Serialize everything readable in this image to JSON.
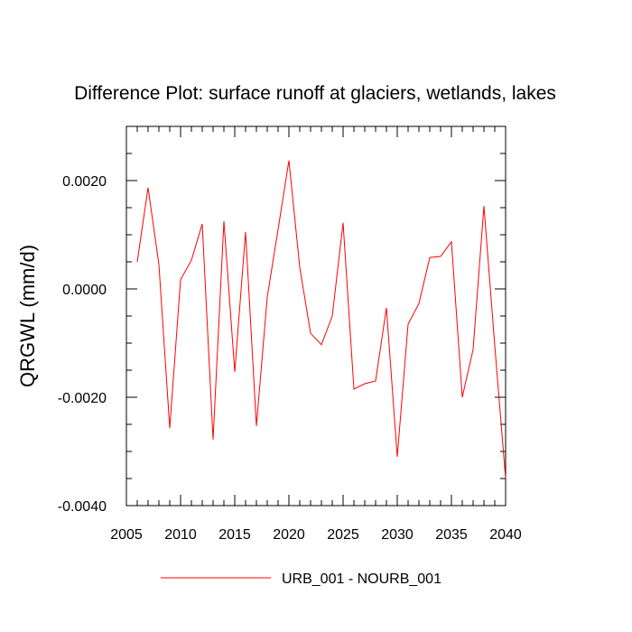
{
  "chart_data": {
    "type": "line",
    "title": "Difference Plot: surface runoff at glaciers, wetlands, lakes",
    "xlabel": "",
    "ylabel": "QRGWL  (mm/d)",
    "xlim": [
      2005,
      2040
    ],
    "ylim": [
      -0.004,
      0.003
    ],
    "x_ticks": [
      2005,
      2010,
      2015,
      2020,
      2025,
      2030,
      2035,
      2040
    ],
    "x_tick_labels": [
      "2005",
      "2010",
      "2015",
      "2020",
      "2025",
      "2030",
      "2035",
      "2040"
    ],
    "y_ticks": [
      -0.004,
      -0.002,
      0.0,
      0.002
    ],
    "y_tick_labels": [
      "-0.0040",
      "-0.0020",
      "0.0000",
      "0.0020"
    ],
    "grid": false,
    "legend_position": "bottom-center",
    "series": [
      {
        "name": "URB_001 - NOURB_001",
        "color": "#ff0000",
        "x": [
          2006,
          2007,
          2008,
          2009,
          2010,
          2011,
          2012,
          2013,
          2014,
          2015,
          2016,
          2017,
          2018,
          2019,
          2020,
          2021,
          2022,
          2023,
          2024,
          2025,
          2026,
          2027,
          2028,
          2029,
          2030,
          2031,
          2032,
          2033,
          2034,
          2035,
          2036,
          2037,
          2038,
          2039,
          2040
        ],
        "values": [
          0.0005,
          0.00187,
          0.00045,
          -0.00257,
          0.00017,
          0.00053,
          0.0012,
          -0.00278,
          0.00125,
          -0.00153,
          0.00105,
          -0.00253,
          -0.00015,
          0.0011,
          0.00237,
          0.0004,
          -0.00082,
          -0.00103,
          -0.0005,
          0.00122,
          -0.00185,
          -0.00175,
          -0.0017,
          -0.00035,
          -0.0031,
          -0.00065,
          -0.00027,
          0.00058,
          0.0006,
          0.00087,
          -0.002,
          -0.00112,
          0.00153,
          -0.00105,
          -0.0035
        ]
      }
    ]
  }
}
